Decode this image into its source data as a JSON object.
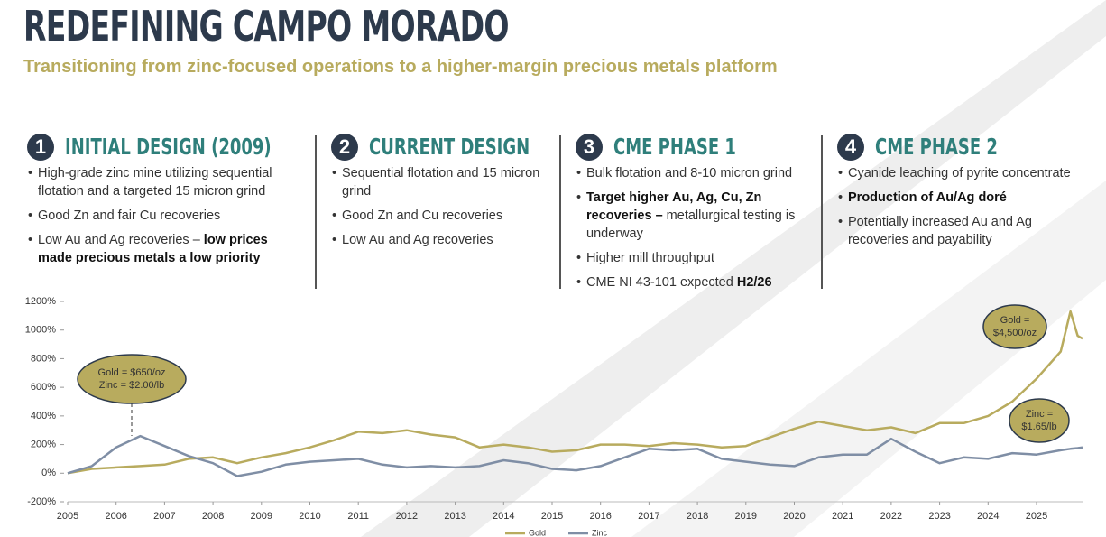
{
  "header": {
    "title": "REDEFINING CAMPO MORADO",
    "subtitle": "Transitioning from zinc-focused operations to a higher-margin precious metals platform"
  },
  "columns": [
    {
      "number": "1",
      "heading": "INITIAL DESIGN (2009)",
      "bullets": [
        [
          {
            "text": "High-grade zinc mine utilizing sequential flotation and a targeted 15 micron grind"
          }
        ],
        [
          {
            "text": "Good Zn and fair Cu recoveries"
          }
        ],
        [
          {
            "text": "Low Au and Ag recoveries – "
          },
          {
            "text": "low prices made precious metals a low priority",
            "bold": true
          }
        ]
      ]
    },
    {
      "number": "2",
      "heading": "CURRENT DESIGN",
      "bullets": [
        [
          {
            "text": "Sequential flotation and 15 micron grind"
          }
        ],
        [
          {
            "text": "Good Zn and Cu recoveries"
          }
        ],
        [
          {
            "text": "Low Au and Ag recoveries"
          }
        ]
      ]
    },
    {
      "number": "3",
      "heading": "CME PHASE 1",
      "bullets": [
        [
          {
            "text": "Bulk flotation and 8-10 micron grind"
          }
        ],
        [
          {
            "text": "Target higher Au, Ag, Cu, Zn recoveries –",
            "bold": true
          },
          {
            "text": " metallurgical testing is underway"
          }
        ],
        [
          {
            "text": "Higher mill throughput"
          }
        ],
        [
          {
            "text": "CME NI 43-101 expected "
          },
          {
            "text": "H2/26",
            "bold": true
          }
        ]
      ]
    },
    {
      "number": "4",
      "heading": "CME PHASE 2",
      "bullets": [
        [
          {
            "text": "Cyanide leaching of pyrite concentrate"
          }
        ],
        [
          {
            "text": "Production of Au/Ag doré",
            "bold": true
          }
        ],
        [
          {
            "text": "Potentially increased Au and Ag recoveries and payability"
          }
        ]
      ]
    }
  ],
  "chart_data": {
    "type": "line",
    "x": [
      2005,
      2005.5,
      2006,
      2006.5,
      2007,
      2007.5,
      2008,
      2008.5,
      2009,
      2009.5,
      2010,
      2010.5,
      2011,
      2011.5,
      2012,
      2012.5,
      2013,
      2013.5,
      2014,
      2014.5,
      2015,
      2015.5,
      2016,
      2016.5,
      2017,
      2017.5,
      2018,
      2018.5,
      2019,
      2019.5,
      2020,
      2020.5,
      2021,
      2021.5,
      2022,
      2022.5,
      2023,
      2023.5,
      2024,
      2024.5,
      2025,
      2025.5,
      2025.7,
      2025.85,
      2025.95
    ],
    "series": [
      {
        "name": "Gold",
        "color": "#b8ab5e",
        "values": [
          0,
          30,
          40,
          50,
          60,
          100,
          110,
          70,
          110,
          140,
          180,
          230,
          290,
          280,
          300,
          270,
          250,
          180,
          200,
          180,
          150,
          160,
          200,
          200,
          190,
          210,
          200,
          180,
          190,
          250,
          310,
          360,
          330,
          300,
          320,
          280,
          350,
          350,
          400,
          500,
          660,
          850,
          1130,
          960,
          940
        ]
      },
      {
        "name": "Zinc",
        "color": "#7f8ea5",
        "values": [
          0,
          50,
          180,
          260,
          190,
          120,
          70,
          -20,
          10,
          60,
          80,
          90,
          100,
          60,
          40,
          50,
          40,
          50,
          90,
          70,
          30,
          20,
          50,
          110,
          170,
          160,
          170,
          100,
          80,
          60,
          50,
          110,
          130,
          130,
          240,
          150,
          70,
          110,
          100,
          140,
          130,
          160,
          170,
          175,
          180
        ]
      }
    ],
    "xlim": [
      2005,
      2025.95
    ],
    "xticks": [
      2005,
      2006,
      2007,
      2008,
      2009,
      2010,
      2011,
      2012,
      2013,
      2014,
      2015,
      2016,
      2017,
      2018,
      2019,
      2020,
      2021,
      2022,
      2023,
      2024,
      2025
    ],
    "ylim": [
      -200,
      1200
    ],
    "yticks": [
      {
        "value": -200,
        "label": "-200%"
      },
      {
        "value": 0,
        "label": "0%"
      },
      {
        "value": 200,
        "label": "200%"
      },
      {
        "value": 400,
        "label": "400%"
      },
      {
        "value": 600,
        "label": "600%"
      },
      {
        "value": 800,
        "label": "800%"
      },
      {
        "value": 1000,
        "label": "1000%"
      },
      {
        "value": 1200,
        "label": "1200%"
      }
    ],
    "annotations": [
      [
        "Gold = $650/oz",
        "Zinc = $2.00/lb"
      ],
      [
        "Gold =",
        "$4,500/oz"
      ],
      [
        "Zinc =",
        "$1.65/lb"
      ]
    ],
    "bubble_color": "#b8ab5e"
  }
}
